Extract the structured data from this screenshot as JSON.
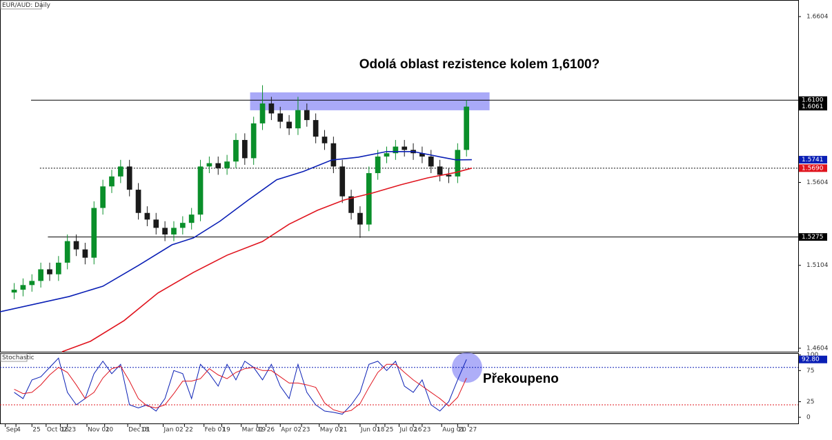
{
  "chart_data": [
    {
      "type": "candlestick",
      "title": "EUR/AUD: Daily",
      "annotation": "Odolá oblast rezistence kolem 1,6100?",
      "xlim": [
        -8,
        442
      ],
      "ylim": [
        1.4583,
        1.6704
      ],
      "yticks": [
        1.6604,
        1.5604,
        1.5104,
        1.4604
      ],
      "xticks": [
        {
          "value": -5,
          "label": "Sep"
        },
        {
          "value": 1,
          "label": "4"
        },
        {
          "value": 10,
          "label": "25"
        },
        {
          "value": 18,
          "label": "Oct 02"
        },
        {
          "value": 26,
          "label": "16"
        },
        {
          "value": 30,
          "label": "23"
        },
        {
          "value": 41,
          "label": "Nov 01"
        },
        {
          "value": 51,
          "label": "20"
        },
        {
          "value": 64,
          "label": "Dec 01"
        },
        {
          "value": 71,
          "label": "18"
        },
        {
          "value": 84,
          "label": "Jan 02"
        },
        {
          "value": 96,
          "label": "22"
        },
        {
          "value": 107,
          "label": "Feb 01"
        },
        {
          "value": 117,
          "label": "19"
        },
        {
          "value": 128,
          "label": "Mar 01"
        },
        {
          "value": 137,
          "label": "19"
        },
        {
          "value": 142,
          "label": "26"
        },
        {
          "value": 150,
          "label": "Apr 02"
        },
        {
          "value": 162,
          "label": "23"
        },
        {
          "value": 172,
          "label": "May 01"
        },
        {
          "value": 183,
          "label": "21"
        },
        {
          "value": 195,
          "label": "Jun 01"
        },
        {
          "value": 204,
          "label": "18"
        },
        {
          "value": 209,
          "label": "25"
        },
        {
          "value": 217,
          "label": "Jul 02"
        },
        {
          "value": 225,
          "label": "16"
        },
        {
          "value": 230,
          "label": "23"
        },
        {
          "value": 241,
          "label": "Aug 01"
        },
        {
          "value": 250,
          "label": "20"
        },
        {
          "value": 256,
          "label": "27"
        }
      ],
      "up_color": "#0a8f2a",
      "down_color": "#1a1a1a",
      "candles": {
        "x": [
          0,
          5,
          10,
          15,
          20,
          25,
          30,
          35,
          40,
          45,
          50,
          55,
          60,
          65,
          70,
          75,
          80,
          85,
          90,
          95,
          100,
          105,
          110,
          115,
          120,
          125,
          130,
          135,
          140,
          145,
          150,
          155,
          160,
          165,
          170,
          175,
          180,
          185,
          190,
          195,
          200,
          205,
          210,
          215,
          220,
          225,
          230,
          235,
          240,
          245,
          250,
          255
        ],
        "open": [
          1.494,
          1.4957,
          1.4985,
          1.501,
          1.508,
          1.505,
          1.512,
          1.525,
          1.52,
          1.515,
          1.545,
          1.558,
          1.564,
          1.57,
          1.556,
          1.542,
          1.538,
          1.533,
          1.529,
          1.533,
          1.536,
          1.541,
          1.57,
          1.572,
          1.569,
          1.573,
          1.586,
          1.575,
          1.596,
          1.608,
          1.602,
          1.597,
          1.593,
          1.604,
          1.598,
          1.588,
          1.584,
          1.57,
          1.552,
          1.542,
          1.535,
          1.566,
          1.576,
          1.578,
          1.582,
          1.58,
          1.578,
          1.576,
          1.57,
          1.565,
          1.564,
          1.58
        ],
        "high": [
          1.4997,
          1.5025,
          1.505,
          1.512,
          1.512,
          1.516,
          1.529,
          1.529,
          1.524,
          1.549,
          1.562,
          1.568,
          1.574,
          1.574,
          1.56,
          1.546,
          1.542,
          1.537,
          1.537,
          1.54,
          1.545,
          1.574,
          1.576,
          1.576,
          1.577,
          1.59,
          1.59,
          1.6,
          1.619,
          1.612,
          1.606,
          1.601,
          1.612,
          1.608,
          1.602,
          1.592,
          1.588,
          1.574,
          1.556,
          1.546,
          1.57,
          1.58,
          1.582,
          1.586,
          1.586,
          1.584,
          1.582,
          1.58,
          1.574,
          1.569,
          1.584,
          1.61
        ],
        "low": [
          1.49,
          1.4917,
          1.4945,
          1.497,
          1.501,
          1.501,
          1.508,
          1.516,
          1.511,
          1.511,
          1.541,
          1.554,
          1.56,
          1.552,
          1.538,
          1.534,
          1.529,
          1.525,
          1.525,
          1.529,
          1.532,
          1.537,
          1.566,
          1.565,
          1.565,
          1.569,
          1.571,
          1.571,
          1.592,
          1.598,
          1.593,
          1.589,
          1.589,
          1.594,
          1.584,
          1.58,
          1.566,
          1.548,
          1.538,
          1.527,
          1.531,
          1.562,
          1.572,
          1.574,
          1.576,
          1.574,
          1.572,
          1.566,
          1.561,
          1.56,
          1.56,
          1.576
        ],
        "close": [
          1.4957,
          1.4985,
          1.501,
          1.508,
          1.505,
          1.512,
          1.525,
          1.52,
          1.515,
          1.545,
          1.558,
          1.564,
          1.57,
          1.556,
          1.542,
          1.538,
          1.533,
          1.529,
          1.533,
          1.536,
          1.541,
          1.57,
          1.572,
          1.569,
          1.573,
          1.586,
          1.575,
          1.596,
          1.608,
          1.602,
          1.597,
          1.593,
          1.604,
          1.598,
          1.588,
          1.584,
          1.57,
          1.552,
          1.542,
          1.535,
          1.566,
          1.576,
          1.578,
          1.582,
          1.58,
          1.578,
          1.576,
          1.57,
          1.565,
          1.564,
          1.58,
          1.6061
        ]
      },
      "lines": [
        {
          "color": "#0a1fb5",
          "x": [
            -8,
            31,
            50,
            70,
            89,
            101,
            116,
            132,
            148,
            163,
            179,
            194,
            210,
            225,
            241,
            249,
            258
          ],
          "values": [
            1.4824,
            1.4916,
            1.4978,
            1.5103,
            1.5228,
            1.5269,
            1.537,
            1.5498,
            1.562,
            1.567,
            1.5739,
            1.5756,
            1.579,
            1.579,
            1.5756,
            1.574,
            1.5741
          ]
        },
        {
          "color": "#e0141e",
          "x": [
            27,
            43,
            62,
            81,
            101,
            120,
            140,
            155,
            171,
            186,
            202,
            218,
            233,
            249,
            258
          ],
          "values": [
            1.4583,
            1.4646,
            1.4771,
            1.4937,
            1.5061,
            1.5165,
            1.5248,
            1.5352,
            1.5436,
            1.5498,
            1.554,
            1.559,
            1.5631,
            1.5664,
            1.569
          ]
        }
      ],
      "zone": {
        "x0": 133,
        "x1": 268,
        "y0": 1.6039,
        "y1": 1.6147,
        "color": "#8c8cf5"
      },
      "levels": [
        {
          "value": 1.61,
          "x_start": 9.5,
          "style": "solid"
        },
        {
          "value": 1.569,
          "x_start": 14.5,
          "style": "dotted"
        },
        {
          "value": 1.5275,
          "x_start": 19,
          "style": "solid"
        }
      ],
      "price_tags": [
        {
          "value": 1.61,
          "label": "1.6100",
          "color": "#000000"
        },
        {
          "value": 1.6061,
          "label": "1.6061",
          "color": "#000000"
        },
        {
          "value": 1.5741,
          "label": "1.5741",
          "color": "#0a1fb5"
        },
        {
          "value": 1.569,
          "label": "1.5690",
          "color": "#e0141e"
        },
        {
          "value": 1.5275,
          "label": "1.5275",
          "color": "#000000"
        }
      ]
    },
    {
      "type": "line",
      "title": "Stochastic",
      "annotation": "Překoupeno",
      "xlim": [
        -8,
        442
      ],
      "ylim": [
        -11,
        103
      ],
      "yticks": [
        0,
        25,
        75,
        100
      ],
      "x": [
        0,
        5,
        10,
        15,
        20,
        25,
        30,
        35,
        40,
        45,
        50,
        55,
        60,
        65,
        70,
        75,
        80,
        85,
        90,
        95,
        100,
        105,
        110,
        115,
        120,
        125,
        130,
        135,
        140,
        145,
        150,
        155,
        160,
        165,
        170,
        175,
        180,
        185,
        190,
        195,
        200,
        205,
        210,
        215,
        220,
        225,
        230,
        235,
        240,
        245,
        250,
        255
      ],
      "series": [
        {
          "color": "#0a1fb5",
          "values": [
            40,
            30,
            60,
            65,
            80,
            95,
            40,
            20,
            30,
            70,
            90,
            70,
            85,
            20,
            15,
            20,
            10,
            30,
            75,
            70,
            30,
            85,
            70,
            50,
            85,
            60,
            90,
            80,
            60,
            85,
            50,
            30,
            85,
            40,
            20,
            10,
            8,
            5,
            20,
            40,
            85,
            90,
            75,
            90,
            50,
            40,
            60,
            20,
            10,
            25,
            60,
            92.8
          ]
        },
        {
          "color": "#e0141e",
          "values": [
            45,
            38,
            40,
            52,
            68,
            80,
            72,
            52,
            30,
            40,
            63,
            78,
            82,
            58,
            30,
            18,
            15,
            20,
            38,
            58,
            58,
            62,
            78,
            68,
            62,
            72,
            78,
            80,
            75,
            75,
            65,
            55,
            55,
            52,
            48,
            23,
            12,
            8,
            11,
            22,
            48,
            72,
            85,
            85,
            72,
            60,
            50,
            40,
            30,
            18,
            32,
            63
          ]
        }
      ],
      "levels": [
        {
          "value": 80,
          "color": "#0a1fb5"
        },
        {
          "value": 20,
          "color": "#e0141e"
        }
      ],
      "price_tags": [
        {
          "value": 92.8,
          "label": "92.80",
          "color": "#0a1fb5"
        }
      ]
    }
  ]
}
